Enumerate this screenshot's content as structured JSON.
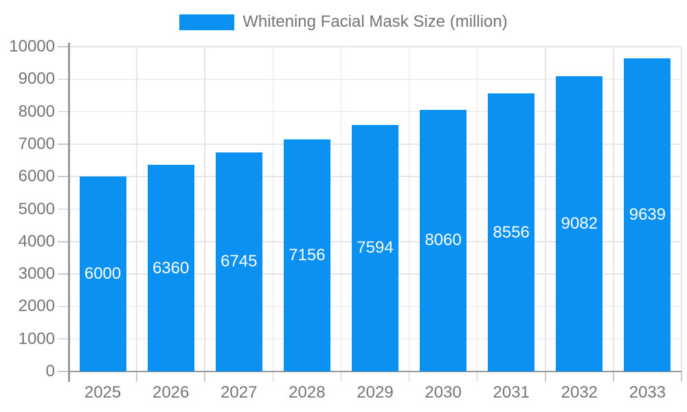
{
  "chart_data": {
    "type": "bar",
    "categories": [
      "2025",
      "2026",
      "2027",
      "2028",
      "2029",
      "2030",
      "2031",
      "2032",
      "2033"
    ],
    "series": [
      {
        "name": "Whitening Facial Mask Size (million)",
        "values": [
          6000,
          6360,
          6745,
          7156,
          7594,
          8060,
          8556,
          9082,
          9639
        ]
      }
    ],
    "ylim": [
      0,
      10000
    ],
    "yticks": [
      0,
      1000,
      2000,
      3000,
      4000,
      5000,
      6000,
      7000,
      8000,
      9000,
      10000
    ],
    "xlabel": "",
    "ylabel": "",
    "grid": true,
    "legend_position": "top"
  },
  "colors": {
    "bar": "#0a91f2",
    "axis": "#999999",
    "grid": "#e6e6e6",
    "tick": "#c9c9c9",
    "text": "#757575",
    "value_label": "#ffffff",
    "background": "#ffffff"
  }
}
